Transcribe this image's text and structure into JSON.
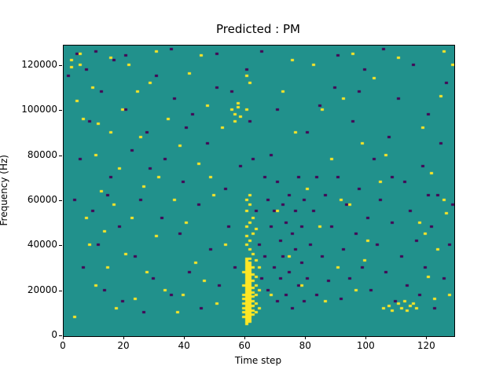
{
  "figure": {
    "title": "Predicted : PM",
    "xlabel": "Time step",
    "ylabel": "Frequency (Hz)"
  },
  "chart_data": {
    "type": "heatmap",
    "title": "Predicted : PM",
    "xlabel": "Time step",
    "ylabel": "Frequency (Hz)",
    "xlim": [
      0,
      129
    ],
    "ylim": [
      0,
      129000
    ],
    "x_ticks": [
      0,
      20,
      40,
      60,
      80,
      100,
      120
    ],
    "y_ticks": [
      0,
      20000,
      40000,
      60000,
      80000,
      100000,
      120000
    ],
    "grid": false,
    "legend": "none",
    "cell_size_hz": 1000,
    "background_value": 1,
    "colormap": {
      "name": "viridis-3level",
      "background": "#21918c",
      "low": "#440154",
      "high": "#fde725"
    },
    "dark_cells": [
      [
        1,
        115
      ],
      [
        3,
        60
      ],
      [
        4,
        125
      ],
      [
        5,
        78
      ],
      [
        6,
        30
      ],
      [
        7,
        118
      ],
      [
        8,
        95
      ],
      [
        9,
        55
      ],
      [
        11,
        40
      ],
      [
        12,
        108
      ],
      [
        13,
        20
      ],
      [
        15,
        70
      ],
      [
        16,
        122
      ],
      [
        18,
        48
      ],
      [
        19,
        15
      ],
      [
        20,
        100
      ],
      [
        22,
        82
      ],
      [
        23,
        35
      ],
      [
        25,
        60
      ],
      [
        26,
        10
      ],
      [
        27,
        90
      ],
      [
        29,
        25
      ],
      [
        30,
        115
      ],
      [
        32,
        52
      ],
      [
        33,
        78
      ],
      [
        35,
        18
      ],
      [
        36,
        105
      ],
      [
        38,
        45
      ],
      [
        39,
        68
      ],
      [
        41,
        28
      ],
      [
        42,
        98
      ],
      [
        44,
        58
      ],
      [
        45,
        12
      ],
      [
        47,
        85
      ],
      [
        48,
        38
      ],
      [
        50,
        110
      ],
      [
        51,
        22
      ],
      [
        53,
        65
      ],
      [
        54,
        48
      ],
      [
        56,
        30
      ],
      [
        58,
        75
      ],
      [
        60,
        118
      ],
      [
        61,
        95
      ],
      [
        63,
        55
      ],
      [
        64,
        40
      ],
      [
        65,
        25
      ],
      [
        66,
        70
      ],
      [
        66,
        35
      ],
      [
        67,
        60
      ],
      [
        67,
        20
      ],
      [
        68,
        48
      ],
      [
        68,
        80
      ],
      [
        69,
        30
      ],
      [
        69,
        55
      ],
      [
        70,
        15
      ],
      [
        70,
        68
      ],
      [
        71,
        42
      ],
      [
        71,
        25
      ],
      [
        72,
        58
      ],
      [
        72,
        35
      ],
      [
        73,
        18
      ],
      [
        73,
        50
      ],
      [
        74,
        62
      ],
      [
        74,
        28
      ],
      [
        75,
        45
      ],
      [
        75,
        12
      ],
      [
        76,
        38
      ],
      [
        76,
        55
      ],
      [
        77,
        22
      ],
      [
        77,
        70
      ],
      [
        78,
        32
      ],
      [
        78,
        48
      ],
      [
        79,
        15
      ],
      [
        79,
        60
      ],
      [
        80,
        25
      ],
      [
        80,
        90
      ],
      [
        81,
        40
      ],
      [
        82,
        55
      ],
      [
        83,
        18
      ],
      [
        84,
        102
      ],
      [
        85,
        35
      ],
      [
        86,
        62
      ],
      [
        87,
        24
      ],
      [
        88,
        48
      ],
      [
        89,
        110
      ],
      [
        90,
        70
      ],
      [
        91,
        16
      ],
      [
        92,
        38
      ],
      [
        93,
        58
      ],
      [
        94,
        25
      ],
      [
        95,
        95
      ],
      [
        96,
        45
      ],
      [
        97,
        65
      ],
      [
        98,
        30
      ],
      [
        99,
        118
      ],
      [
        100,
        52
      ],
      [
        101,
        20
      ],
      [
        102,
        78
      ],
      [
        103,
        40
      ],
      [
        104,
        60
      ],
      [
        106,
        28
      ],
      [
        107,
        88
      ],
      [
        108,
        50
      ],
      [
        109,
        15
      ],
      [
        110,
        105
      ],
      [
        111,
        35
      ],
      [
        112,
        68
      ],
      [
        113,
        22
      ],
      [
        114,
        55
      ],
      [
        115,
        120
      ],
      [
        116,
        42
      ],
      [
        117,
        18
      ],
      [
        118,
        75
      ],
      [
        119,
        30
      ],
      [
        120,
        98
      ],
      [
        121,
        48
      ],
      [
        122,
        12
      ],
      [
        123,
        62
      ],
      [
        124,
        85
      ],
      [
        125,
        25
      ],
      [
        126,
        112
      ],
      [
        127,
        40
      ],
      [
        128,
        58
      ],
      [
        10,
        126
      ],
      [
        20,
        124
      ],
      [
        35,
        127
      ],
      [
        50,
        125
      ],
      [
        65,
        126
      ],
      [
        90,
        124
      ],
      [
        105,
        127
      ],
      [
        14,
        62
      ],
      [
        28,
        74
      ],
      [
        40,
        92
      ],
      [
        55,
        108
      ],
      [
        62,
        78
      ],
      [
        70,
        100
      ],
      [
        83,
        70
      ],
      [
        97,
        108
      ],
      [
        108,
        70
      ],
      [
        120,
        62
      ]
    ],
    "yellow_cells": [
      [
        59,
        8
      ],
      [
        59,
        10
      ],
      [
        59,
        12
      ],
      [
        59,
        14
      ],
      [
        59,
        16
      ],
      [
        59,
        18
      ],
      [
        59,
        22
      ],
      [
        59,
        28
      ],
      [
        60,
        5
      ],
      [
        60,
        6
      ],
      [
        60,
        7
      ],
      [
        60,
        8
      ],
      [
        60,
        9
      ],
      [
        60,
        10
      ],
      [
        60,
        11
      ],
      [
        60,
        12
      ],
      [
        60,
        13
      ],
      [
        60,
        14
      ],
      [
        60,
        15
      ],
      [
        60,
        16
      ],
      [
        60,
        17
      ],
      [
        60,
        18
      ],
      [
        60,
        19
      ],
      [
        60,
        20
      ],
      [
        60,
        21
      ],
      [
        60,
        22
      ],
      [
        60,
        23
      ],
      [
        60,
        24
      ],
      [
        60,
        25
      ],
      [
        60,
        26
      ],
      [
        60,
        27
      ],
      [
        60,
        28
      ],
      [
        60,
        29
      ],
      [
        60,
        30
      ],
      [
        60,
        31
      ],
      [
        60,
        32
      ],
      [
        60,
        33
      ],
      [
        60,
        34
      ],
      [
        60,
        40
      ],
      [
        60,
        44
      ],
      [
        60,
        48
      ],
      [
        60,
        55
      ],
      [
        60,
        60
      ],
      [
        61,
        6
      ],
      [
        61,
        7
      ],
      [
        61,
        8
      ],
      [
        61,
        9
      ],
      [
        61,
        10
      ],
      [
        61,
        11
      ],
      [
        61,
        12
      ],
      [
        61,
        13
      ],
      [
        61,
        14
      ],
      [
        61,
        15
      ],
      [
        61,
        16
      ],
      [
        61,
        17
      ],
      [
        61,
        18
      ],
      [
        61,
        19
      ],
      [
        61,
        20
      ],
      [
        61,
        21
      ],
      [
        61,
        22
      ],
      [
        61,
        23
      ],
      [
        61,
        24
      ],
      [
        61,
        25
      ],
      [
        61,
        26
      ],
      [
        61,
        27
      ],
      [
        61,
        28
      ],
      [
        61,
        29
      ],
      [
        61,
        30
      ],
      [
        61,
        31
      ],
      [
        61,
        32
      ],
      [
        61,
        34
      ],
      [
        61,
        38
      ],
      [
        61,
        42
      ],
      [
        61,
        50
      ],
      [
        61,
        58
      ],
      [
        61,
        62
      ],
      [
        62,
        9
      ],
      [
        62,
        11
      ],
      [
        62,
        13
      ],
      [
        62,
        15
      ],
      [
        62,
        17
      ],
      [
        62,
        19
      ],
      [
        62,
        21
      ],
      [
        62,
        24
      ],
      [
        62,
        27
      ],
      [
        62,
        30
      ],
      [
        62,
        36
      ],
      [
        62,
        45
      ],
      [
        62,
        52
      ],
      [
        63,
        10
      ],
      [
        63,
        14
      ],
      [
        63,
        18
      ],
      [
        63,
        22
      ],
      [
        63,
        26
      ],
      [
        63,
        33
      ],
      [
        63,
        47
      ],
      [
        64,
        12
      ],
      [
        64,
        20
      ],
      [
        64,
        30
      ],
      [
        55,
        100
      ],
      [
        56,
        95
      ],
      [
        56,
        98
      ],
      [
        57,
        101
      ],
      [
        57,
        103
      ],
      [
        58,
        97
      ],
      [
        60,
        100
      ],
      [
        60,
        115
      ],
      [
        61,
        112
      ],
      [
        2,
        119
      ],
      [
        2,
        122
      ],
      [
        3,
        8
      ],
      [
        4,
        104
      ],
      [
        5,
        120
      ],
      [
        6,
        96
      ],
      [
        8,
        40
      ],
      [
        9,
        110
      ],
      [
        10,
        22
      ],
      [
        10,
        80
      ],
      [
        12,
        64
      ],
      [
        13,
        46
      ],
      [
        14,
        30
      ],
      [
        15,
        90
      ],
      [
        16,
        58
      ],
      [
        17,
        12
      ],
      [
        18,
        74
      ],
      [
        19,
        100
      ],
      [
        20,
        36
      ],
      [
        21,
        120
      ],
      [
        22,
        52
      ],
      [
        23,
        16
      ],
      [
        25,
        88
      ],
      [
        26,
        66
      ],
      [
        27,
        28
      ],
      [
        28,
        112
      ],
      [
        30,
        44
      ],
      [
        31,
        70
      ],
      [
        33,
        20
      ],
      [
        34,
        96
      ],
      [
        36,
        60
      ],
      [
        37,
        10
      ],
      [
        38,
        84
      ],
      [
        40,
        50
      ],
      [
        41,
        116
      ],
      [
        43,
        32
      ],
      [
        44,
        76
      ],
      [
        46,
        24
      ],
      [
        47,
        102
      ],
      [
        49,
        62
      ],
      [
        50,
        14
      ],
      [
        52,
        92
      ],
      [
        53,
        40
      ],
      [
        68,
        18
      ],
      [
        70,
        55
      ],
      [
        72,
        108
      ],
      [
        74,
        35
      ],
      [
        76,
        90
      ],
      [
        78,
        22
      ],
      [
        80,
        65
      ],
      [
        82,
        120
      ],
      [
        84,
        48
      ],
      [
        86,
        15
      ],
      [
        88,
        78
      ],
      [
        90,
        30
      ],
      [
        92,
        105
      ],
      [
        94,
        58
      ],
      [
        96,
        20
      ],
      [
        98,
        85
      ],
      [
        100,
        42
      ],
      [
        102,
        114
      ],
      [
        104,
        68
      ],
      [
        105,
        12
      ],
      [
        107,
        13
      ],
      [
        108,
        11
      ],
      [
        110,
        14
      ],
      [
        111,
        12
      ],
      [
        112,
        15
      ],
      [
        113,
        11
      ],
      [
        114,
        13
      ],
      [
        115,
        14
      ],
      [
        116,
        12
      ],
      [
        117,
        50
      ],
      [
        118,
        92
      ],
      [
        120,
        26
      ],
      [
        121,
        72
      ],
      [
        123,
        38
      ],
      [
        124,
        106
      ],
      [
        126,
        54
      ],
      [
        127,
        18
      ],
      [
        128,
        120
      ],
      [
        5,
        125
      ],
      [
        15,
        123
      ],
      [
        30,
        126
      ],
      [
        45,
        124
      ],
      [
        75,
        122
      ],
      [
        95,
        125
      ],
      [
        110,
        123
      ],
      [
        125,
        126
      ],
      [
        7,
        52
      ],
      [
        11,
        94
      ],
      [
        24,
        108
      ],
      [
        39,
        18
      ],
      [
        48,
        70
      ],
      [
        85,
        100
      ],
      [
        91,
        60
      ],
      [
        99,
        33
      ],
      [
        106,
        80
      ],
      [
        119,
        45
      ],
      [
        122,
        16
      ],
      [
        125,
        60
      ]
    ]
  }
}
